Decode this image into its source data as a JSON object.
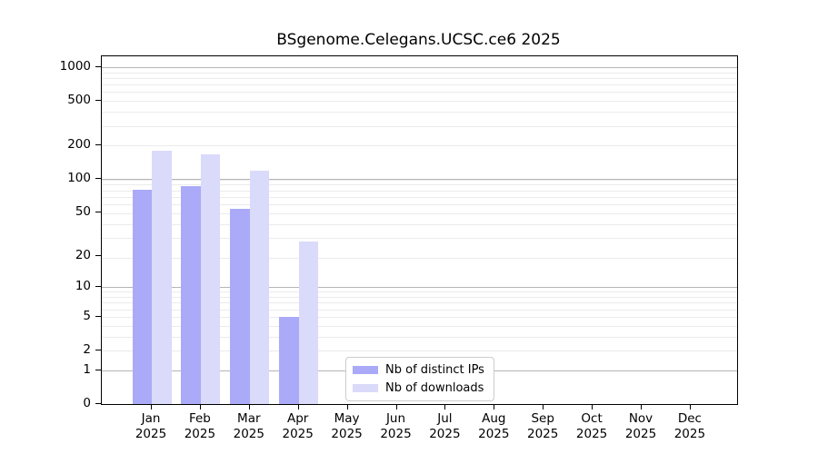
{
  "title": "BSgenome.Celegans.UCSC.ce6 2025",
  "chart_data": {
    "type": "bar",
    "title": "BSgenome.Celegans.UCSC.ce6 2025",
    "scale": "log1p",
    "categories": [
      "Jan",
      "Feb",
      "Mar",
      "Apr",
      "May",
      "Jun",
      "Jul",
      "Aug",
      "Sep",
      "Oct",
      "Nov",
      "Dec"
    ],
    "category_year": "2025",
    "series": [
      {
        "name": "Nb of distinct IPs",
        "color": "#aaaaf8",
        "values": [
          80,
          87,
          54,
          5,
          0,
          0,
          0,
          0,
          0,
          0,
          0,
          0
        ]
      },
      {
        "name": "Nb of downloads",
        "color": "#dadafa",
        "values": [
          180,
          167,
          118,
          27,
          0,
          0,
          0,
          0,
          0,
          0,
          0,
          0
        ]
      }
    ],
    "y_ticks": [
      0,
      1,
      2,
      5,
      10,
      20,
      50,
      100,
      200,
      500,
      1000
    ],
    "major_grid_values": [
      1,
      10,
      100,
      1000
    ],
    "minor_grid_values_plus1": [
      2,
      3,
      4,
      5,
      6,
      7,
      8,
      9,
      10,
      20,
      30,
      40,
      50,
      60,
      70,
      80,
      90,
      100,
      200,
      300,
      400,
      500,
      600,
      700,
      800,
      900
    ],
    "ylim_top_plus1": 1250,
    "legend_position": "lower center",
    "grid": "on",
    "colors": {
      "major_grid": "#b5b5b5",
      "minor_grid": "#ebebeb",
      "axis": "#000000",
      "background": "#ffffff"
    }
  }
}
